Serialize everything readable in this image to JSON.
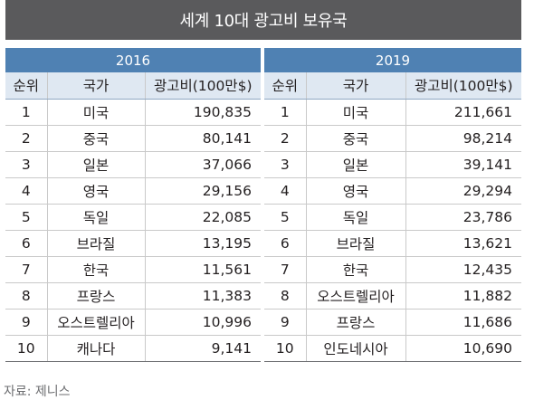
{
  "title": "세계 10대 광고비 보유국",
  "source": "자료: 제니스",
  "headers": {
    "rank": "순위",
    "country": "국가",
    "value": "광고비(100만$)"
  },
  "tables": [
    {
      "year": "2016",
      "rows": [
        {
          "rank": "1",
          "country": "미국",
          "value": "190,835"
        },
        {
          "rank": "2",
          "country": "중국",
          "value": "80,141"
        },
        {
          "rank": "3",
          "country": "일본",
          "value": "37,066"
        },
        {
          "rank": "4",
          "country": "영국",
          "value": "29,156"
        },
        {
          "rank": "5",
          "country": "독일",
          "value": "22,085"
        },
        {
          "rank": "6",
          "country": "브라질",
          "value": "13,195"
        },
        {
          "rank": "7",
          "country": "한국",
          "value": "11,561"
        },
        {
          "rank": "8",
          "country": "프랑스",
          "value": "11,383"
        },
        {
          "rank": "9",
          "country": "오스트렐리아",
          "value": "10,996"
        },
        {
          "rank": "10",
          "country": "캐나다",
          "value": "9,141"
        }
      ]
    },
    {
      "year": "2019",
      "rows": [
        {
          "rank": "1",
          "country": "미국",
          "value": "211,661"
        },
        {
          "rank": "2",
          "country": "중국",
          "value": "98,214"
        },
        {
          "rank": "3",
          "country": "일본",
          "value": "39,141"
        },
        {
          "rank": "4",
          "country": "영국",
          "value": "29,294"
        },
        {
          "rank": "5",
          "country": "독일",
          "value": "23,786"
        },
        {
          "rank": "6",
          "country": "브라질",
          "value": "13,621"
        },
        {
          "rank": "7",
          "country": "한국",
          "value": "12,435"
        },
        {
          "rank": "8",
          "country": "오스트렐리아",
          "value": "11,882"
        },
        {
          "rank": "9",
          "country": "프랑스",
          "value": "11,686"
        },
        {
          "rank": "10",
          "country": "인도네시아",
          "value": "10,690"
        }
      ]
    }
  ],
  "colors": {
    "title_bg": "#5a5a5c",
    "year_bar": "#4f81b3",
    "header_row": "#dfe8f2"
  }
}
